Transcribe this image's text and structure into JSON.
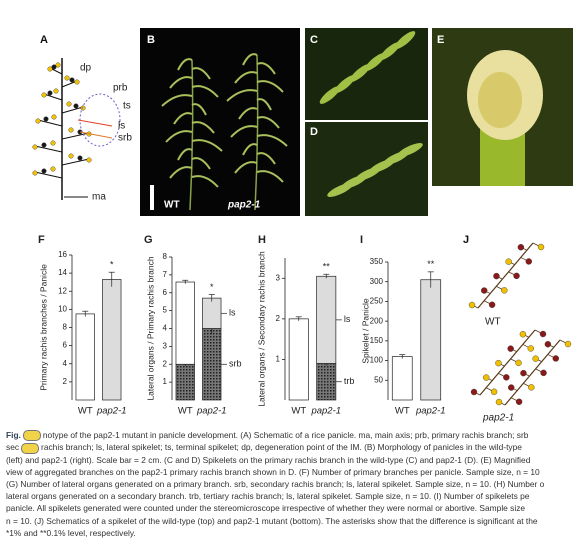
{
  "panel_labels": [
    "A",
    "B",
    "C",
    "D",
    "E",
    "J"
  ],
  "schematic_a": {
    "labels": [
      "dp",
      "prb",
      "ts",
      "ls",
      "srb",
      "ma"
    ]
  },
  "photo_b": {
    "labels": [
      "WT",
      "pap2-1"
    ]
  },
  "schematic_j": {
    "labels": [
      "WT",
      "pap2-1"
    ]
  },
  "chart_data": [
    {
      "type": "bar",
      "panel": "F",
      "ylabel": "Primary rachis branches / Panicle",
      "categories": [
        "WT",
        "pap2-1"
      ],
      "values": [
        9.5,
        13.3
      ],
      "errors": [
        0.3,
        0.8
      ],
      "colors": [
        "#ffffff",
        "#dcdcdc"
      ],
      "significance": "*",
      "ylim": [
        0,
        16
      ],
      "yticks": [
        2,
        4,
        6,
        8,
        10,
        12,
        14,
        16
      ]
    },
    {
      "type": "stacked-bar",
      "panel": "G",
      "ylabel": "Lateral organs / Primary rachis branch",
      "categories": [
        "WT",
        "pap2-1"
      ],
      "series": [
        {
          "name": "srb",
          "color": "#555555",
          "hatch": true,
          "values": [
            2.0,
            4.0
          ],
          "errors": [
            0.1,
            0.3
          ]
        },
        {
          "name": "ls",
          "colors": [
            "#ffffff",
            "#dcdcdc"
          ],
          "values": [
            4.6,
            1.7
          ],
          "errors": [
            0.1,
            0.2
          ]
        }
      ],
      "significance": "*",
      "ylim": [
        0,
        8
      ],
      "yticks": [
        1,
        2,
        3,
        4,
        5,
        6,
        7,
        8
      ]
    },
    {
      "type": "stacked-bar",
      "panel": "H",
      "ylabel": "Lateral organs / Secondary rachis branch",
      "categories": [
        "WT",
        "pap2-1"
      ],
      "series": [
        {
          "name": "trb",
          "color": "#555555",
          "hatch": true,
          "values": [
            null,
            0.9
          ],
          "errors": [
            null,
            0.05
          ]
        },
        {
          "name": "ls",
          "colors": [
            "#ffffff",
            "#dcdcdc"
          ],
          "values": [
            2.0,
            2.15
          ],
          "errors": [
            0.05,
            0.05
          ]
        }
      ],
      "significance": "**",
      "ylim": [
        0,
        3.5
      ],
      "yticks": [
        1,
        2,
        3
      ]
    },
    {
      "type": "bar",
      "panel": "I",
      "ylabel": "Spikelet / Panicle",
      "categories": [
        "WT",
        "pap2-1"
      ],
      "values": [
        110,
        305
      ],
      "errors": [
        5,
        20
      ],
      "colors": [
        "#ffffff",
        "#dcdcdc"
      ],
      "significance": "**",
      "ylim": [
        0,
        350
      ],
      "yticks": [
        50,
        100,
        150,
        200,
        250,
        300,
        350
      ]
    }
  ],
  "caption": {
    "lines": [
      [
        "Fig.",
        "notype of the pap2-1 mutant in panicle development. (A) Schematic of a rice panicle. ma, main axis; prb, primary rachis branch; srb"
      ],
      [
        "sec",
        "rachis branch; ls, lateral spikelet; ts, terminal spikelet; dp, degeneration point of the IM. (B) Morphology of panicles in the wild-type"
      ],
      [
        "(left) and pap2-1 (right). Scale bar = 2 cm. (C and D) Spikelets on the primary rachis branch in the wild-type (C) and pap2-1 (D). (E) Magnified"
      ],
      [
        "view of aggregated branches on the pap2-1 primary rachis branch shown in D. (F) Number of primary branches per panicle. Sample size, n = 10"
      ],
      [
        "(G) Number of lateral organs generated on a primary branch. srb, secondary rachis branch; ls, lateral spikelet. Sample size, n = 10. (H) Number o"
      ],
      [
        "lateral organs generated on a secondary branch. trb, tertiary rachis branch; ls, lateral spikelet. Sample size, n = 10. (I) Number of spikelets pe"
      ],
      [
        "panicle. All spikelets generated were counted under the stereomicroscope irrespective of whether they were normal or abortive. Sample size"
      ],
      [
        "n = 10. (J) Schematics of a spikelet of the wild-type (top) and pap2-1 mutant (bottom). The asterisks show that the difference is significant at the"
      ],
      [
        "*1% and **0.1% level, respectively."
      ]
    ]
  }
}
